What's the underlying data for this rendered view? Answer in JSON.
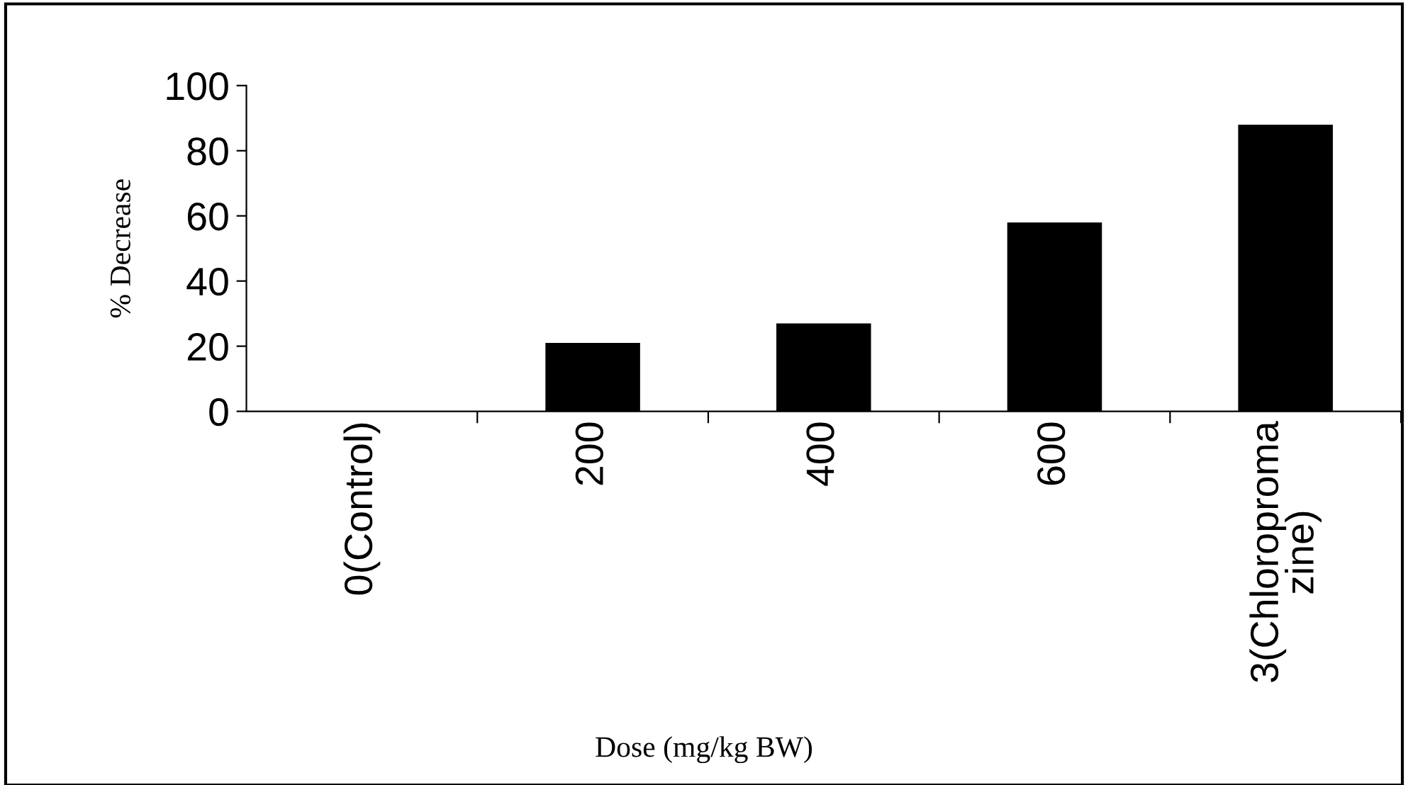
{
  "chart_data": {
    "type": "bar",
    "categories": [
      "0(Control)",
      "200",
      "400",
      "600",
      "3(Chloroproma\nzine)"
    ],
    "values": [
      0,
      21,
      27,
      58,
      88
    ],
    "color": "#000000",
    "ylabel": "% Decrease",
    "xlabel": "Dose (mg/kg BW)",
    "ylim": [
      0,
      100
    ],
    "yticks": [
      0,
      20,
      40,
      60,
      80,
      100
    ],
    "grid": false
  }
}
